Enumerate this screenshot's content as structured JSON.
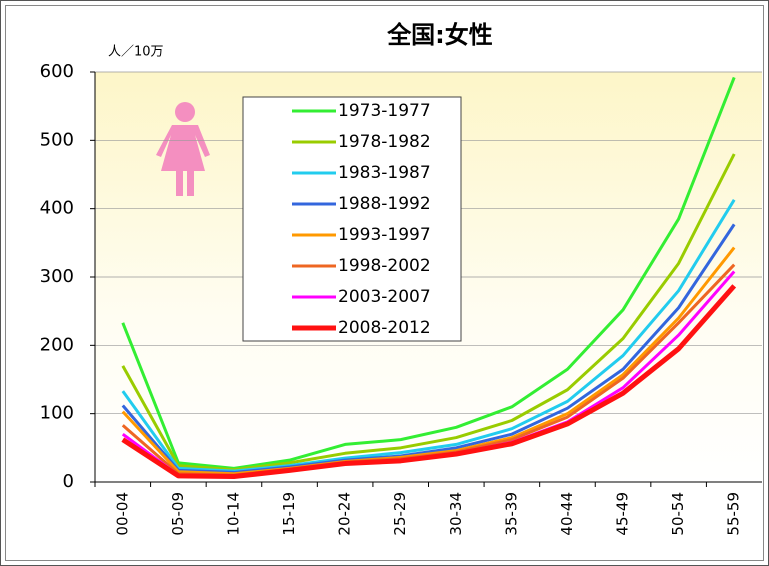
{
  "chart_data": {
    "type": "line",
    "title": "全国:女性",
    "y_label": "人／10万",
    "categories": [
      "00-04",
      "05-09",
      "10-14",
      "15-19",
      "20-24",
      "25-29",
      "30-34",
      "35-39",
      "40-44",
      "45-49",
      "50-54",
      "55-59"
    ],
    "ylim": [
      0,
      600
    ],
    "yticks": [
      0,
      100,
      200,
      300,
      400,
      500,
      600
    ],
    "grid": true,
    "legend": "upper-left",
    "series": [
      {
        "name": "1973-1977",
        "color": "#33ee33",
        "values": [
          233,
          28,
          20,
          32,
          55,
          62,
          80,
          110,
          165,
          252,
          385,
          592
        ]
      },
      {
        "name": "1978-1982",
        "color": "#99cc00",
        "values": [
          170,
          24,
          18,
          28,
          42,
          50,
          65,
          90,
          135,
          210,
          320,
          480
        ]
      },
      {
        "name": "1983-1987",
        "color": "#22ccee",
        "values": [
          133,
          20,
          16,
          24,
          35,
          43,
          55,
          78,
          118,
          185,
          280,
          413
        ]
      },
      {
        "name": "1988-1992",
        "color": "#3366dd",
        "values": [
          112,
          17,
          14,
          22,
          32,
          38,
          50,
          70,
          108,
          165,
          255,
          377
        ]
      },
      {
        "name": "1993-1997",
        "color": "#ff9900",
        "values": [
          103,
          15,
          12,
          20,
          30,
          36,
          46,
          65,
          100,
          157,
          240,
          343
        ]
      },
      {
        "name": "1998-2002",
        "color": "#ee6622",
        "values": [
          83,
          12,
          10,
          19,
          29,
          34,
          44,
          62,
          95,
          152,
          233,
          318
        ]
      },
      {
        "name": "2003-2007",
        "color": "#ff00ff",
        "values": [
          70,
          10,
          9,
          18,
          28,
          32,
          42,
          58,
          88,
          138,
          215,
          308
        ]
      },
      {
        "name": "2008-2012",
        "color": "#ff1111",
        "values": [
          62,
          9,
          8,
          17,
          27,
          31,
          41,
          56,
          85,
          130,
          195,
          287
        ]
      }
    ]
  }
}
